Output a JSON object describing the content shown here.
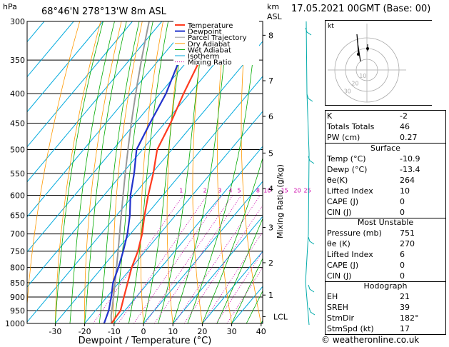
{
  "header": {
    "location": "68°46'N  278°13'W  8m  ASL",
    "datetime": "17.05.2021  00GMT  (Base: 00)",
    "unit_pressure": "hPa",
    "unit_height": "km",
    "unit_height2": "ASL"
  },
  "legend": [
    "Temperature",
    "Dewpoint",
    "Parcel Trajectory",
    "Dry Adiabat",
    "Wet Adiabat",
    "Isotherm",
    "Mixing Ratio"
  ],
  "colors": {
    "temperature": "#ff3b1f",
    "dewpoint": "#2233cc",
    "parcel": "#999999",
    "dry_adiabat": "#ff9900",
    "wet_adiabat": "#00aa00",
    "isotherm": "#00aadd",
    "mixing_ratio": "#cc00aa",
    "wind": "#00aaaa"
  },
  "chart_data": {
    "type": "line",
    "xlabel": "Dewpoint / Temperature (°C)",
    "ylabel": "Mixing Ratio (g/kg)",
    "x_ticks": [
      -30,
      -20,
      -10,
      0,
      10,
      20,
      30,
      40
    ],
    "pressure_levels": [
      300,
      350,
      400,
      450,
      500,
      550,
      600,
      650,
      700,
      750,
      800,
      850,
      900,
      950,
      1000
    ],
    "km_ticks": [
      {
        "label": "8",
        "p": 317
      },
      {
        "label": "7",
        "p": 380
      },
      {
        "label": "6",
        "p": 438
      },
      {
        "label": "5",
        "p": 507
      },
      {
        "label": "4",
        "p": 584
      },
      {
        "label": "3",
        "p": 682
      },
      {
        "label": "2",
        "p": 785
      },
      {
        "label": "1",
        "p": 893
      },
      {
        "label": "LCL",
        "p": 973
      }
    ],
    "mixing_ratio_labels": [
      "1",
      "2",
      "3",
      "4",
      "5",
      "8",
      "10",
      "15",
      "20",
      "25"
    ],
    "mixing_ratio_values": [
      1,
      2,
      3,
      4,
      5,
      8,
      10,
      15,
      20,
      25
    ],
    "series": [
      {
        "name": "Temperature",
        "p": [
          1000,
          950,
          900,
          850,
          800,
          750,
          700,
          650,
          600,
          550,
          500,
          450,
          400,
          350,
          300
        ],
        "t": [
          -10.9,
          -11.5,
          -14.2,
          -17.0,
          -20.0,
          -22.5,
          -26.0,
          -30.5,
          -35.0,
          -39.5,
          -45.0,
          -48.0,
          -52.0,
          -56.0,
          -57.5
        ]
      },
      {
        "name": "Dewpoint",
        "p": [
          1000,
          950,
          900,
          850,
          800,
          750,
          700,
          650,
          600,
          550,
          500,
          450,
          400,
          350,
          300
        ],
        "t": [
          -13.4,
          -15.5,
          -18.5,
          -22.0,
          -24.5,
          -27.5,
          -31.0,
          -35.5,
          -41.0,
          -46.0,
          -52.0,
          -55.0,
          -58.0,
          -63.0,
          -66.0
        ]
      }
    ]
  },
  "indices": {
    "rows": [
      {
        "k": "K",
        "v": "-2"
      },
      {
        "k": "Totals Totals",
        "v": "46"
      },
      {
        "k": "PW (cm)",
        "v": "0.27"
      }
    ],
    "surface_title": "Surface",
    "surface": [
      {
        "k": "Temp (°C)",
        "v": "-10.9"
      },
      {
        "k": "Dewp (°C)",
        "v": "-13.4"
      },
      {
        "k": "θe(K)",
        "v": "264"
      },
      {
        "k": "Lifted Index",
        "v": "10"
      },
      {
        "k": "CAPE (J)",
        "v": "0"
      },
      {
        "k": "CIN (J)",
        "v": "0"
      }
    ],
    "unstable_title": "Most Unstable",
    "unstable": [
      {
        "k": "Pressure (mb)",
        "v": "751"
      },
      {
        "k": "θe (K)",
        "v": "270"
      },
      {
        "k": "Lifted Index",
        "v": "6"
      },
      {
        "k": "CAPE (J)",
        "v": "0"
      },
      {
        "k": "CIN (J)",
        "v": "0"
      }
    ],
    "hodo_title": "Hodograph",
    "hodo": [
      {
        "k": "EH",
        "v": "21"
      },
      {
        "k": "SREH",
        "v": "39"
      },
      {
        "k": "StmDir",
        "v": "182°"
      },
      {
        "k": "StmSpd (kt)",
        "v": "17"
      }
    ]
  },
  "hodograph": {
    "unit": "kt",
    "ring_labels": [
      "10",
      "20",
      "30"
    ]
  },
  "credit": "© weatheronline.co.uk"
}
